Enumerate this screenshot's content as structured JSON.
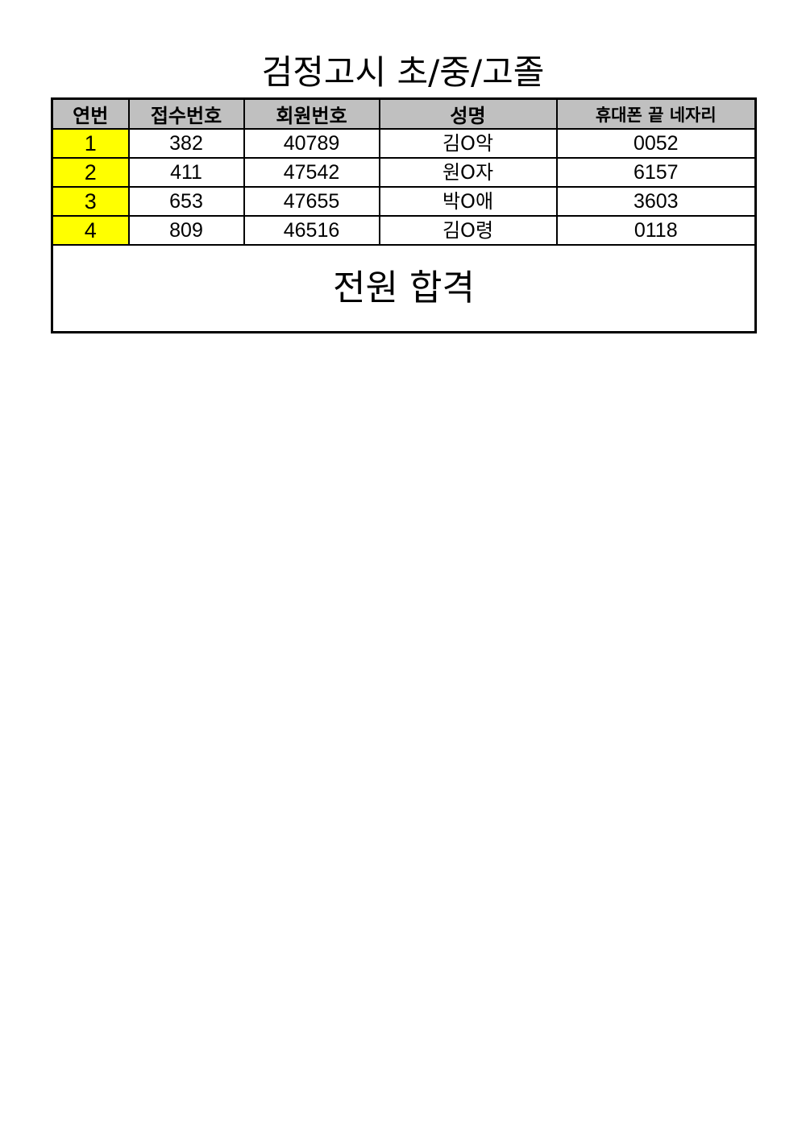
{
  "title": "검정고시 초/중/고졸",
  "table": {
    "headers": [
      "연번",
      "접수번호",
      "회원번호",
      "성명",
      "휴대폰 끝 네자리"
    ],
    "rows": [
      [
        "1",
        "382",
        "40789",
        "김O악",
        "0052"
      ],
      [
        "2",
        "411",
        "47542",
        "원O자",
        "6157"
      ],
      [
        "3",
        "653",
        "47655",
        "박O애",
        "3603"
      ],
      [
        "4",
        "809",
        "46516",
        "김O령",
        "0118"
      ]
    ],
    "footer": "전원 합격"
  },
  "colors": {
    "header_bg": "#c0c0c0",
    "index_bg": "#ffff00"
  }
}
